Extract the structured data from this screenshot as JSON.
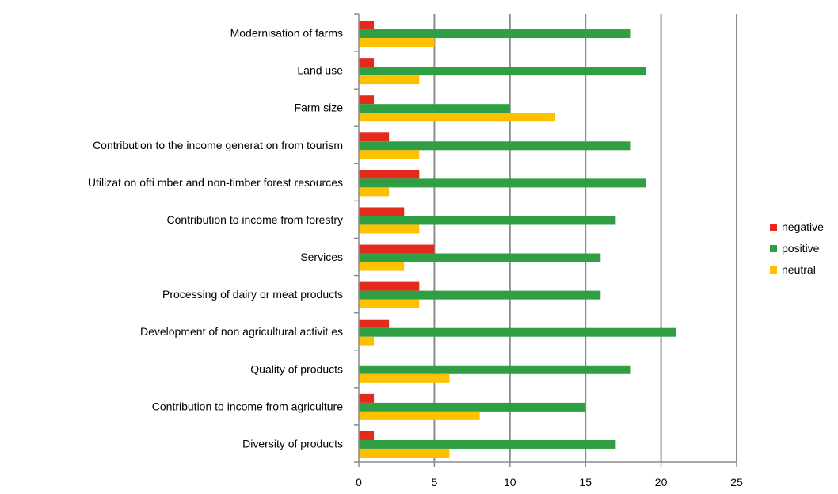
{
  "chart_data": {
    "type": "bar",
    "orientation": "horizontal",
    "categories": [
      "Modernisation of farms",
      "Land use",
      "Farm size",
      "Contribution to the income generat on from tourism",
      "Utilizat on ofti mber and non-timber forest resources",
      "Contribution to income from forestry",
      "Services",
      "Processing of dairy or meat products",
      "Development of non agricultural activit es",
      "Quality of products",
      "Contribution to income from agriculture",
      "Diversity of products"
    ],
    "series": [
      {
        "name": "negative",
        "color": "#e32a1c",
        "values": [
          1,
          1,
          1,
          2,
          4,
          3,
          5,
          4,
          2,
          0,
          1,
          1
        ]
      },
      {
        "name": "positive",
        "color": "#2ea043",
        "values": [
          18,
          19,
          10,
          18,
          19,
          17,
          16,
          16,
          21,
          18,
          15,
          17
        ]
      },
      {
        "name": "neutral",
        "color": "#ffc000",
        "values": [
          5,
          4,
          13,
          4,
          2,
          4,
          3,
          4,
          1,
          6,
          8,
          6
        ]
      }
    ],
    "xlim": [
      0,
      25
    ],
    "xticks": [
      "0",
      "5",
      "10",
      "15",
      "20",
      "25"
    ],
    "grid": "vertical",
    "legend_position": "right",
    "title": "",
    "xlabel": "",
    "ylabel": ""
  }
}
